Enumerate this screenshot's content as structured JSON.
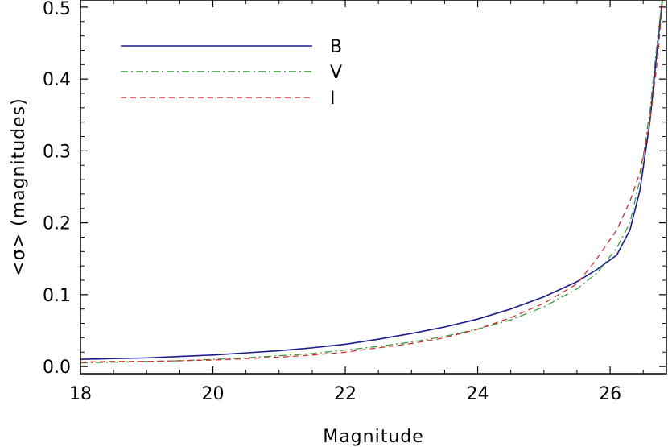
{
  "chart_data": {
    "type": "line",
    "xlabel": "Magnitude",
    "ylabel": "<σ> (magnitudes)",
    "xlim": [
      18,
      26.85
    ],
    "ylim": [
      -0.01,
      0.51
    ],
    "xticks": [
      18,
      20,
      22,
      24,
      26
    ],
    "xtick_labels": [
      "18",
      "20",
      "22",
      "24",
      "26"
    ],
    "yticks": [
      0.0,
      0.1,
      0.2,
      0.3,
      0.4,
      0.5
    ],
    "ytick_labels": [
      "0.0",
      "0.1",
      "0.2",
      "0.3",
      "0.4",
      "0.5"
    ],
    "grid": false,
    "legend_position": "top-left",
    "series": [
      {
        "name": "B",
        "color": "#1a1a8c",
        "dash": "solid",
        "x": [
          18.0,
          18.5,
          19.0,
          19.5,
          20.0,
          20.5,
          21.0,
          21.5,
          22.0,
          22.5,
          23.0,
          23.5,
          24.0,
          24.5,
          25.0,
          25.5,
          25.8,
          26.1,
          26.3,
          26.45,
          26.6,
          26.72,
          26.8
        ],
        "y": [
          0.01,
          0.011,
          0.012,
          0.014,
          0.016,
          0.019,
          0.022,
          0.026,
          0.031,
          0.038,
          0.046,
          0.055,
          0.066,
          0.08,
          0.097,
          0.118,
          0.135,
          0.155,
          0.19,
          0.245,
          0.34,
          0.45,
          0.52
        ]
      },
      {
        "name": "V",
        "color": "#3a9a3a",
        "dash": "dashdot",
        "x": [
          18.0,
          18.5,
          19.0,
          19.5,
          20.0,
          20.5,
          21.0,
          21.5,
          22.0,
          22.5,
          23.0,
          23.5,
          24.0,
          24.5,
          25.0,
          25.5,
          25.8,
          26.1,
          26.3,
          26.45,
          26.6,
          26.72,
          26.8
        ],
        "y": [
          0.005,
          0.006,
          0.007,
          0.008,
          0.01,
          0.012,
          0.015,
          0.018,
          0.023,
          0.028,
          0.034,
          0.042,
          0.052,
          0.065,
          0.083,
          0.108,
          0.13,
          0.165,
          0.2,
          0.26,
          0.355,
          0.46,
          0.52
        ]
      },
      {
        "name": "I",
        "color": "#cc3333",
        "dash": "dashed",
        "x": [
          18.0,
          18.5,
          19.0,
          19.5,
          20.0,
          20.5,
          21.0,
          21.5,
          22.0,
          22.5,
          23.0,
          23.5,
          24.0,
          24.5,
          25.0,
          25.5,
          25.8,
          26.1,
          26.3,
          26.45,
          26.6,
          26.72,
          26.8
        ],
        "y": [
          0.006,
          0.007,
          0.007,
          0.008,
          0.009,
          0.011,
          0.013,
          0.016,
          0.02,
          0.026,
          0.032,
          0.04,
          0.052,
          0.068,
          0.088,
          0.115,
          0.15,
          0.19,
          0.23,
          0.27,
          0.34,
          0.43,
          0.52
        ]
      }
    ]
  }
}
